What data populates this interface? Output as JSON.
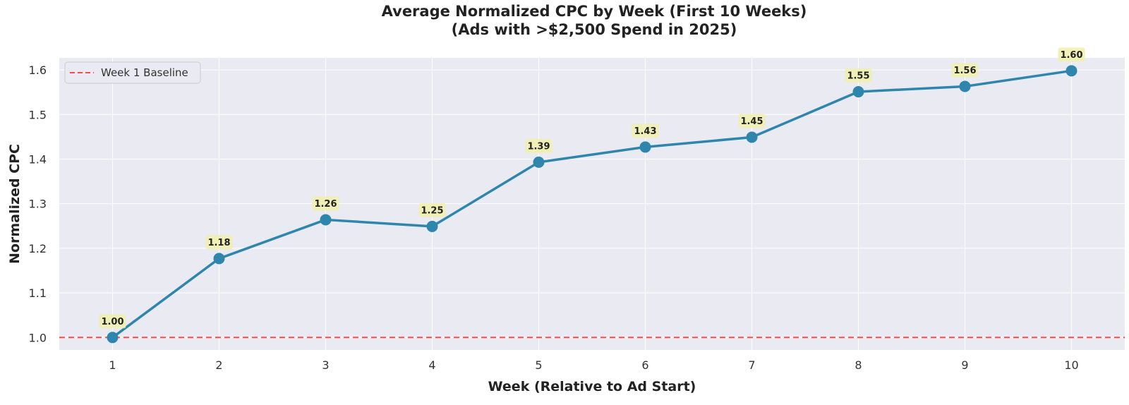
{
  "chart_data": {
    "type": "line",
    "title_line1": "Average Normalized CPC by Week (First 10 Weeks)",
    "title_line2": "(Ads with >$2,500 Spend in 2025)",
    "xlabel": "Week (Relative to Ad Start)",
    "ylabel": "Normalized CPC",
    "x": [
      1,
      2,
      3,
      4,
      5,
      6,
      7,
      8,
      9,
      10
    ],
    "x_tick_labels": [
      "1",
      "2",
      "3",
      "4",
      "5",
      "6",
      "7",
      "8",
      "9",
      "10"
    ],
    "series": [
      {
        "name": "Average Normalized CPC",
        "values": [
          1.0,
          1.177,
          1.264,
          1.249,
          1.393,
          1.427,
          1.449,
          1.551,
          1.563,
          1.598
        ],
        "labels": [
          "1.00",
          "1.18",
          "1.26",
          "1.25",
          "1.39",
          "1.43",
          "1.45",
          "1.55",
          "1.56",
          "1.60"
        ],
        "color": "#2f86ad"
      }
    ],
    "baseline": {
      "name": "Week 1 Baseline",
      "value": 1.0,
      "color": "#ff4a4a"
    },
    "y_ticks": [
      1.0,
      1.1,
      1.2,
      1.3,
      1.4,
      1.5,
      1.6
    ],
    "y_tick_labels": [
      "1.0",
      "1.1",
      "1.2",
      "1.3",
      "1.4",
      "1.5",
      "1.6"
    ],
    "xlim": [
      0.5,
      10.5
    ],
    "ylim": [
      0.972,
      1.627
    ],
    "grid": true,
    "legend_position": "top-left",
    "colors": {
      "plot_background": "#eaeaf2",
      "grid": "#ffffff",
      "label_box": "#f0f0b0"
    }
  }
}
